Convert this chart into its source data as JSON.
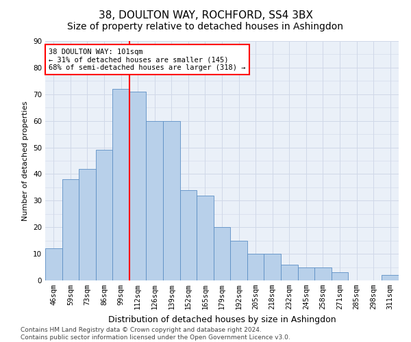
{
  "title": "38, DOULTON WAY, ROCHFORD, SS4 3BX",
  "subtitle": "Size of property relative to detached houses in Ashingdon",
  "xlabel": "Distribution of detached houses by size in Ashingdon",
  "ylabel": "Number of detached properties",
  "categories": [
    "46sqm",
    "59sqm",
    "73sqm",
    "86sqm",
    "99sqm",
    "112sqm",
    "126sqm",
    "139sqm",
    "152sqm",
    "165sqm",
    "179sqm",
    "192sqm",
    "205sqm",
    "218sqm",
    "232sqm",
    "245sqm",
    "258sqm",
    "271sqm",
    "285sqm",
    "298sqm",
    "311sqm"
  ],
  "values": [
    12,
    38,
    42,
    49,
    72,
    71,
    60,
    60,
    34,
    32,
    20,
    15,
    10,
    10,
    6,
    5,
    5,
    3,
    0,
    0,
    2
  ],
  "bar_color": "#b8d0ea",
  "bar_edge_color": "#5b8ec4",
  "reference_line_color": "red",
  "reference_line_x": 4.5,
  "annotation_text": "38 DOULTON WAY: 101sqm\n← 31% of detached houses are smaller (145)\n68% of semi-detached houses are larger (318) →",
  "annotation_box_color": "white",
  "annotation_box_edge_color": "red",
  "ylim": [
    0,
    90
  ],
  "yticks": [
    0,
    10,
    20,
    30,
    40,
    50,
    60,
    70,
    80,
    90
  ],
  "grid_color": "#d0d8e8",
  "background_color": "#eaf0f8",
  "footer_text": "Contains HM Land Registry data © Crown copyright and database right 2024.\nContains public sector information licensed under the Open Government Licence v3.0.",
  "title_fontsize": 11,
  "subtitle_fontsize": 10,
  "xlabel_fontsize": 9,
  "ylabel_fontsize": 8,
  "tick_fontsize": 7.5,
  "annotation_fontsize": 7.5,
  "footer_fontsize": 6.5
}
